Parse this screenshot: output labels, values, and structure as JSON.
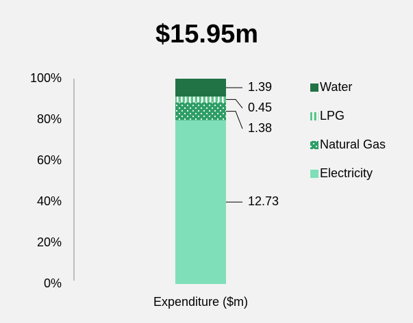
{
  "chart_data": {
    "type": "bar",
    "stacking": "percent",
    "title": "$15.95m",
    "categories": [
      "Expenditure ($m)"
    ],
    "series": [
      {
        "name": "Electricity",
        "color": "#7fdfb8",
        "values": [
          12.73
        ]
      },
      {
        "name": "Natural Gas",
        "color": "#2e9e66",
        "pattern": "dots",
        "values": [
          1.38
        ]
      },
      {
        "name": "LPG",
        "color": "#5cc48a",
        "pattern": "stripes",
        "values": [
          0.45
        ]
      },
      {
        "name": "Water",
        "color": "#217346",
        "values": [
          1.39
        ]
      }
    ],
    "ylim": [
      0,
      100
    ],
    "yticks": [
      {
        "value": 0,
        "label": "0%"
      },
      {
        "value": 20,
        "label": "20%"
      },
      {
        "value": 40,
        "label": "40%"
      },
      {
        "value": 60,
        "label": "60%"
      },
      {
        "value": 80,
        "label": "80%"
      },
      {
        "value": 100,
        "label": "100%"
      }
    ],
    "grid": false,
    "legend": "right"
  }
}
